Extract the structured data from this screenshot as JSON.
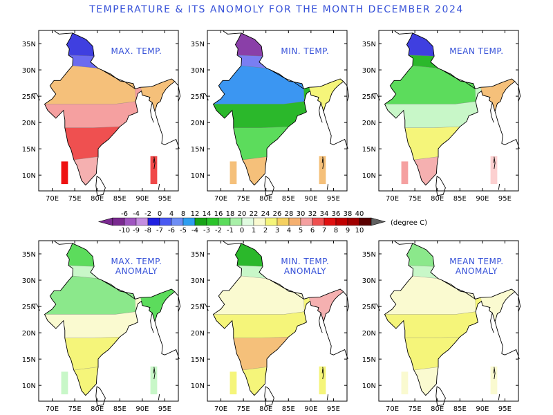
{
  "title": "TEMPERATURE & ITS ANOMOLY FOR THE MONTH DECEMBER 2024",
  "x_tick_labels": [
    "70E",
    "75E",
    "80E",
    "85E",
    "90E",
    "95E"
  ],
  "y_tick_labels": [
    "10N",
    "15N",
    "20N",
    "25N",
    "30N",
    "35N"
  ],
  "panels": [
    {
      "id": "max-temp",
      "title_lines": [
        "MAX. TEMP."
      ],
      "colors": [
        "#3f3fe0",
        "#6b6bf0",
        "#f5c07a",
        "#f5a0a0",
        "#ef5050",
        "#f5c07a",
        "#f5b0b0"
      ],
      "inset_colors": [
        "#ee1111",
        "#f04848"
      ]
    },
    {
      "id": "min-temp",
      "title_lines": [
        "MIN. TEMP."
      ],
      "colors": [
        "#8a3fa8",
        "#7a7ef2",
        "#3b96f2",
        "#2bb82b",
        "#5cdc5c",
        "#f5f57a",
        "#f5c07a"
      ],
      "inset_colors": [
        "#f5c07a",
        "#f5c07a"
      ]
    },
    {
      "id": "mean-temp",
      "title_lines": [
        "MEAN TEMP."
      ],
      "colors": [
        "#3f3fe0",
        "#2bb82b",
        "#5cdc5c",
        "#c8f7c8",
        "#f5f57a",
        "#f5c07a",
        "#f5b0b0"
      ],
      "inset_colors": [
        "#f5a0a0",
        "#fcd0d0"
      ]
    },
    {
      "id": "max-temp-anomaly",
      "title_lines": [
        "MAX. TEMP.",
        "ANOMALY"
      ],
      "colors": [
        "#5cdc5c",
        "#c8f7c8",
        "#8be88b",
        "#fafad0",
        "#f5f57a",
        "#5cdc5c",
        "#f5f57a"
      ],
      "inset_colors": [
        "#c8f7c8",
        "#c8f7c8"
      ]
    },
    {
      "id": "min-temp-anomaly",
      "title_lines": [
        "MIN. TEMP.",
        "ANOMALY"
      ],
      "colors": [
        "#2bb82b",
        "#c8f7c8",
        "#fafad0",
        "#f5f57a",
        "#f5c07a",
        "#f5b0b0",
        "#f5f57a"
      ],
      "inset_colors": [
        "#f5f57a",
        "#f5f57a"
      ]
    },
    {
      "id": "mean-temp-anomaly",
      "title_lines": [
        "MEAN TEMP.",
        "ANOMALY"
      ],
      "colors": [
        "#8be88b",
        "#c8f7c8",
        "#fafad0",
        "#f5f57a",
        "#f5f57a",
        "#fafad0",
        "#fafad0"
      ],
      "inset_colors": [
        "#fafad0",
        "#fafad0"
      ]
    }
  ],
  "legend": {
    "temp_labels": [
      "-6",
      "-4",
      "-2",
      "0",
      "4",
      "8",
      "12",
      "14",
      "16",
      "18",
      "20",
      "22",
      "24",
      "26",
      "28",
      "30",
      "32",
      "34",
      "36",
      "38",
      "40"
    ],
    "anomaly_labels": [
      "-10",
      "-9",
      "-8",
      "-7",
      "-6",
      "-5",
      "-4",
      "-3",
      "-2",
      "-1",
      "0",
      "1",
      "2",
      "3",
      "4",
      "5",
      "6",
      "7",
      "8",
      "9",
      "10"
    ],
    "colors": [
      "#7a2a90",
      "#9f55c0",
      "#c48ee0",
      "#2020e0",
      "#4a5af2",
      "#6e8ef5",
      "#2e9ef0",
      "#17a317",
      "#2bc42b",
      "#5cdc5c",
      "#a8f0a8",
      "#e0fbe0",
      "#fafad0",
      "#f5f57a",
      "#f5d060",
      "#f5b070",
      "#f5a0a0",
      "#ef5050",
      "#e01010",
      "#c00000",
      "#a00000",
      "#5a0000"
    ],
    "unit": "(degree C)"
  }
}
